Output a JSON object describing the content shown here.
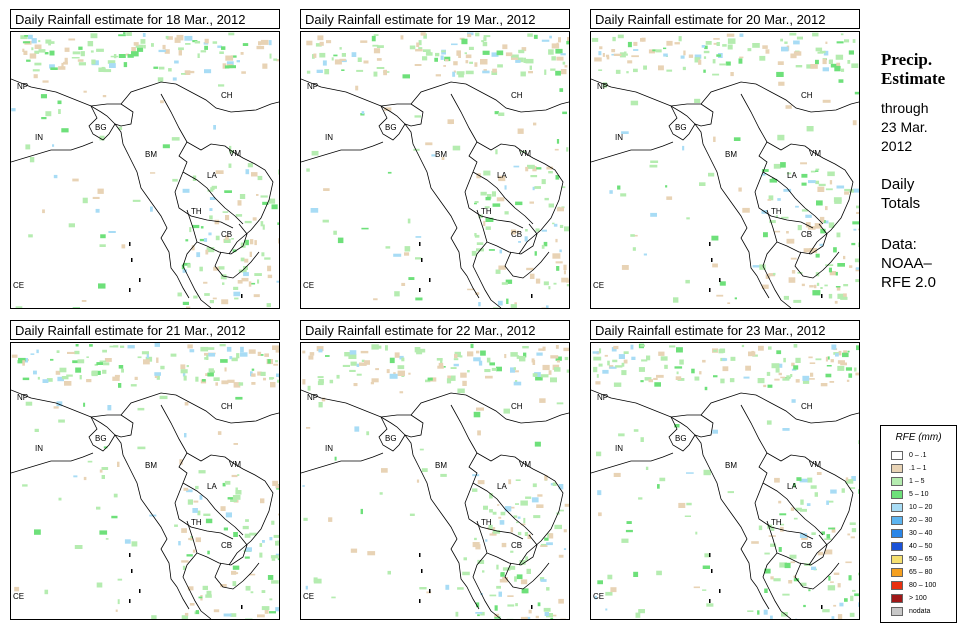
{
  "panels": [
    {
      "title": "Daily Rainfall estimate for  18 Mar., 2012"
    },
    {
      "title": "Daily Rainfall estimate for  19 Mar., 2012"
    },
    {
      "title": "Daily Rainfall estimate for  20 Mar., 2012"
    },
    {
      "title": "Daily Rainfall estimate for  21 Mar., 2012"
    },
    {
      "title": "Daily Rainfall estimate for  22 Mar., 2012"
    },
    {
      "title": "Daily Rainfall estimate for  23 Mar., 2012"
    }
  ],
  "map_labels": [
    "NP",
    "CH",
    "IN",
    "BG",
    "BM",
    "VM",
    "LA",
    "TH",
    "CB",
    "CE"
  ],
  "sidebar": {
    "title1": "Precip.",
    "title2": "Estimate",
    "line1": "through",
    "line2": "23 Mar.",
    "line3": "2012",
    "line4": "Daily",
    "line5": "Totals",
    "line6": "Data:",
    "line7": "NOAA–",
    "line8": "RFE 2.0"
  },
  "legend": {
    "title": "RFE (mm)",
    "items": [
      {
        "label": "0 – .1",
        "color": "#ffffff"
      },
      {
        "label": ".1 – 1",
        "color": "#e8d3b5"
      },
      {
        "label": "1 – 5",
        "color": "#b5ecb0"
      },
      {
        "label": "5 – 10",
        "color": "#6ee07a"
      },
      {
        "label": "10 – 20",
        "color": "#a8dcf5"
      },
      {
        "label": "20 – 30",
        "color": "#5cb4f0"
      },
      {
        "label": "30 – 40",
        "color": "#2a86e8"
      },
      {
        "label": "40 – 50",
        "color": "#1a52d8"
      },
      {
        "label": "50 – 65",
        "color": "#f5e070"
      },
      {
        "label": "65 – 80",
        "color": "#f5a020"
      },
      {
        "label": "80 – 100",
        "color": "#e83010"
      },
      {
        "label": "> 100",
        "color": "#a01818"
      },
      {
        "label": "nodata",
        "color": "#c8c8c8"
      }
    ]
  }
}
